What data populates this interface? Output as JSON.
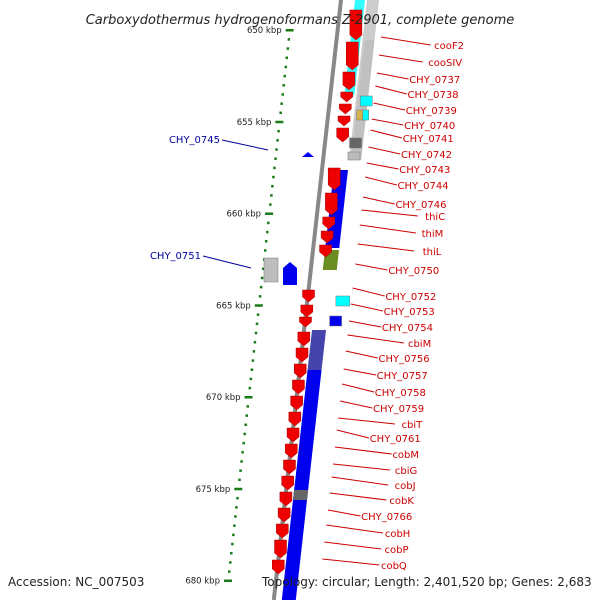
{
  "title": "Carboxydothermus hydrogenoformans Z-2901, complete genome",
  "footer": {
    "accession": "Accession: NC_007503",
    "summary": "Topology: circular; Length: 2,401,520 bp; Genes: 2,683"
  },
  "colors": {
    "forward_gene": "#ee0000",
    "reverse_gene": "#0000ee",
    "label_right": "#cc0000",
    "label_left": "#000099",
    "tick": "#1a7a1a",
    "backbone": "#888888"
  },
  "ticks": [
    {
      "label": "650 kbp",
      "kbp": 650
    },
    {
      "label": "655 kbp",
      "kbp": 655
    },
    {
      "label": "660 kbp",
      "kbp": 660
    },
    {
      "label": "665 kbp",
      "kbp": 665
    },
    {
      "label": "670 kbp",
      "kbp": 670
    },
    {
      "label": "675 kbp",
      "kbp": 675
    },
    {
      "label": "680 kbp",
      "kbp": 680
    }
  ],
  "labels_right": [
    "cooF2",
    "cooSIV",
    "CHY_0737",
    "CHY_0738",
    "CHY_0739",
    "CHY_0740",
    "CHY_0741",
    "CHY_0742",
    "CHY_0743",
    "CHY_0744",
    "CHY_0746",
    "thiC",
    "thiM",
    "thiL",
    "CHY_0750",
    "CHY_0752",
    "CHY_0753",
    "CHY_0754",
    "cbiM",
    "CHY_0756",
    "CHY_0757",
    "CHY_0758",
    "CHY_0759",
    "cbiT",
    "CHY_0761",
    "cobM",
    "cbiG",
    "cobJ",
    "cobK",
    "CHY_0766",
    "cobH",
    "cobP",
    "cobQ"
  ],
  "labels_left": [
    "CHY_0745",
    "CHY_0751"
  ]
}
